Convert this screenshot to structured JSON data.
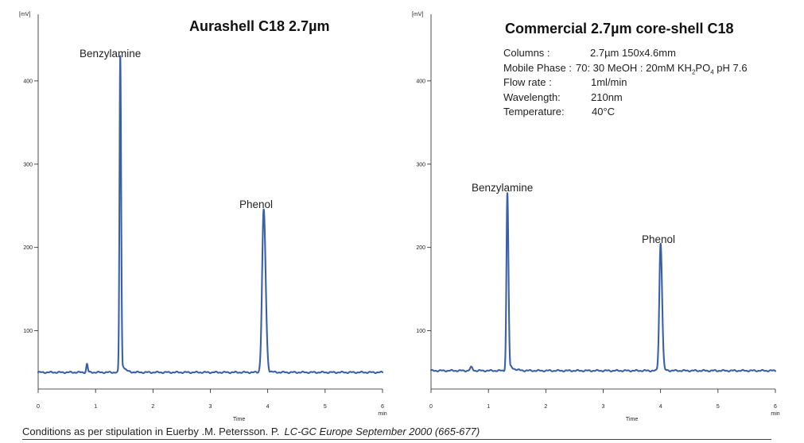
{
  "chart_data": [
    {
      "type": "line",
      "title": "Aurashell C18 2.7µm",
      "xlabel": "Time",
      "ylabel": "[mV]",
      "x_unit": "min",
      "xlim": [
        0,
        6
      ],
      "ylim": [
        30,
        480
      ],
      "x_ticks": [
        0,
        1,
        2,
        3,
        4,
        5,
        6
      ],
      "y_ticks": [
        100,
        200,
        300,
        400
      ],
      "baseline": 50,
      "peaks": [
        {
          "name": "",
          "rt": 0.85,
          "height": 60,
          "width": 0.012
        },
        {
          "name": "Benzylamine",
          "rt": 1.43,
          "height": 430,
          "width": 0.013,
          "tail": 0.05
        },
        {
          "name": "Phenol",
          "rt": 3.93,
          "height": 245,
          "width": 0.028,
          "tail": 0.05
        }
      ]
    },
    {
      "type": "line",
      "title": "Commercial 2.7µm core-shell C18",
      "xlabel": "Time",
      "ylabel": "[mV]",
      "x_unit": "min",
      "xlim": [
        0,
        6
      ],
      "ylim": [
        30,
        480
      ],
      "x_ticks": [
        0,
        1,
        2,
        3,
        4,
        5,
        6
      ],
      "y_ticks": [
        100,
        200,
        300,
        400
      ],
      "baseline": 52,
      "peaks": [
        {
          "name": "",
          "rt": 0.7,
          "height": 56,
          "width": 0.02
        },
        {
          "name": "Benzylamine",
          "rt": 1.33,
          "height": 265,
          "width": 0.016,
          "tail": 0.07
        },
        {
          "name": "Phenol",
          "rt": 4.0,
          "height": 205,
          "width": 0.022,
          "tail": 0.04
        }
      ],
      "conditions": [
        {
          "key": "Columns :",
          "value": "2.7µm 150x4.6mm"
        },
        {
          "key": "Mobile Phase :",
          "value": "70: 30 MeOH :  20mM KH",
          "sub1": "2",
          "mid": "PO",
          "sub2": "4",
          "tail": " pH 7.6"
        },
        {
          "key": "Flow rate :",
          "value": "1ml/min"
        },
        {
          "key": "Wavelength:",
          "value": "210nm"
        },
        {
          "key": "Temperature:",
          "value": "40°C"
        }
      ]
    }
  ],
  "footer": {
    "text": "Conditions as per stipulation in Euerby .M. Petersson. P.",
    "reference": "LC-GC Europe September 2000 (665-677)"
  },
  "colors": {
    "trace": "#3a61a8"
  }
}
